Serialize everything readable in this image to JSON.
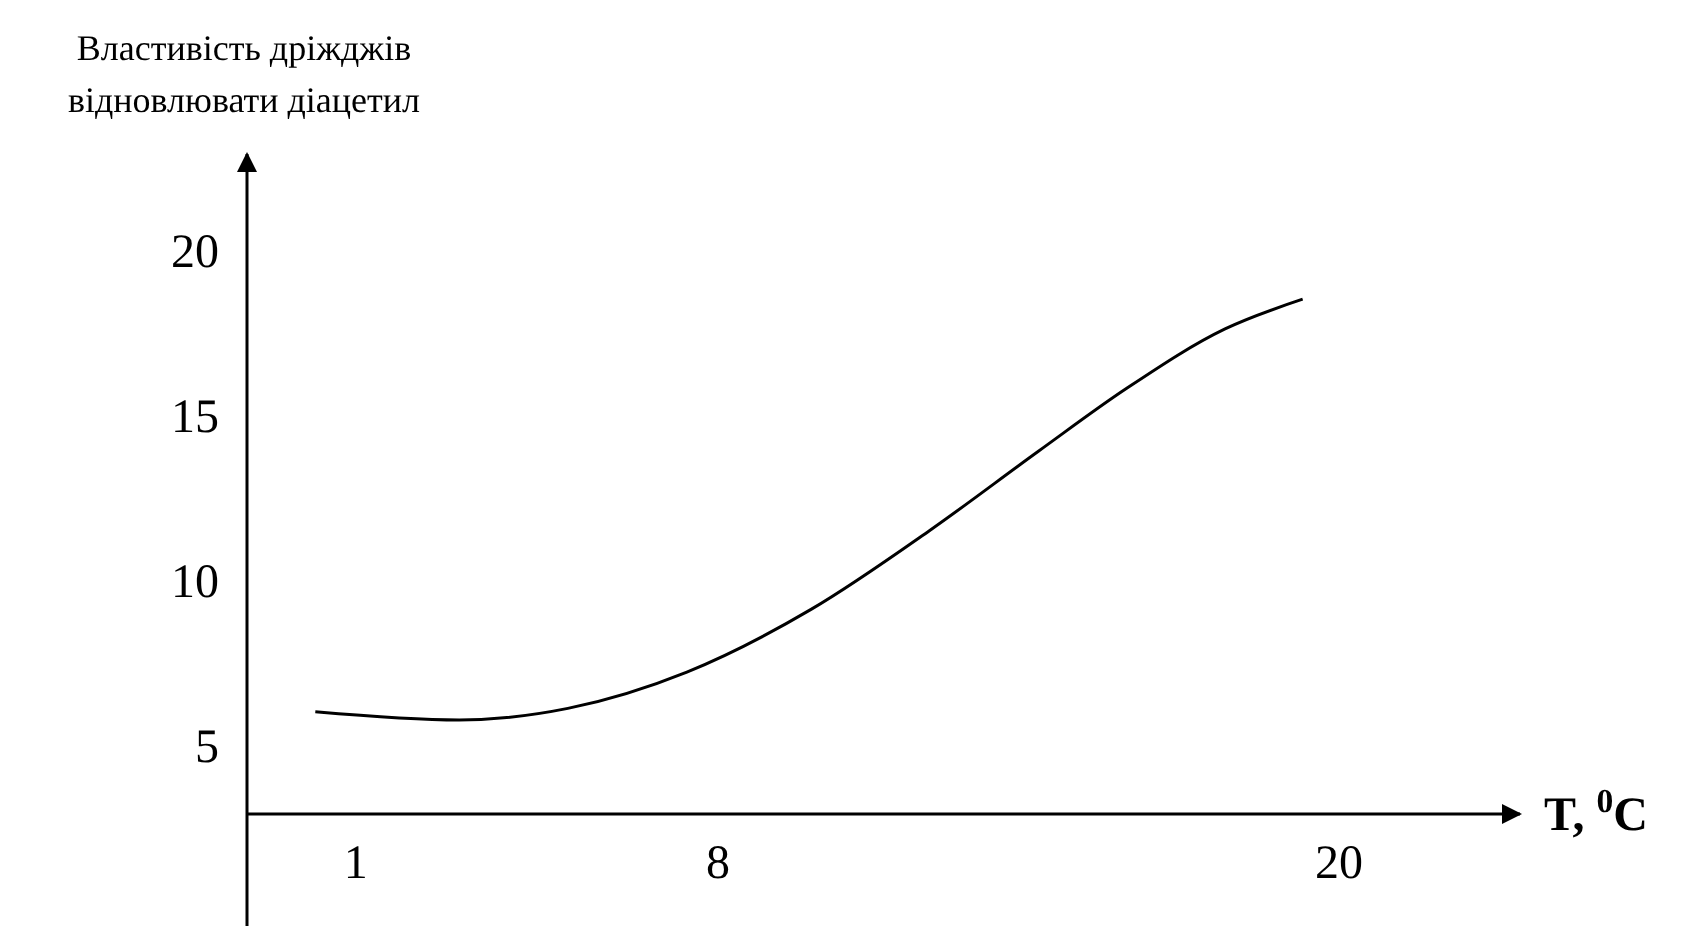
{
  "chart_data": {
    "type": "line",
    "ylabel": "Властивість дріжджів\nвідновлювати діацетил",
    "xlabel": "T, $^{0}$C",
    "xlim": [
      -1.1,
      23.5
    ],
    "ylim": [
      3,
      23
    ],
    "xticks": [
      1,
      8,
      20
    ],
    "yticks": [
      5,
      10,
      15,
      20
    ],
    "grid": false,
    "marker": "none",
    "line_style": "solid",
    "series": [
      {
        "color": "#000000",
        "x": [
          0.22,
          3.0,
          5.1,
          7.4,
          9.8,
          12.1,
          14.2,
          15.9,
          17.8,
          19.3
        ],
        "values": [
          6.1,
          5.85,
          6.2,
          7.3,
          9.2,
          11.6,
          14.0,
          15.9,
          17.7,
          18.6
        ]
      }
    ]
  }
}
